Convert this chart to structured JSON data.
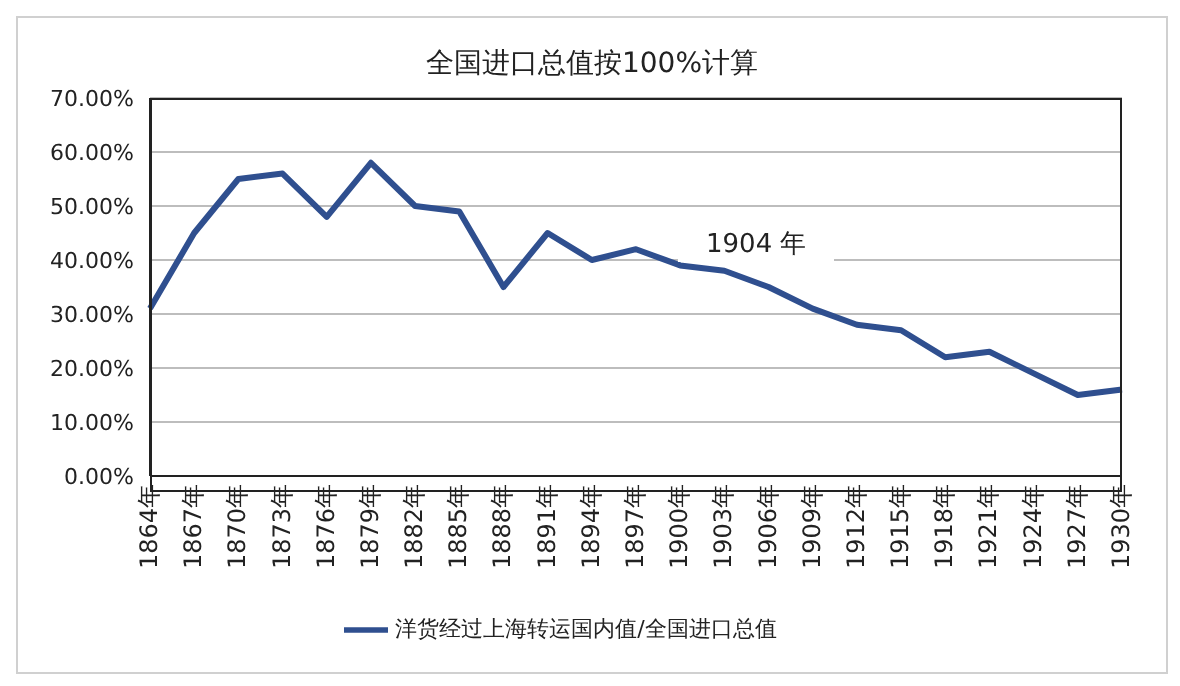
{
  "chart_data": {
    "type": "line",
    "title": "全国进口总值按100%计算",
    "categories": [
      "1864年",
      "1867年",
      "1870年",
      "1873年",
      "1876年",
      "1879年",
      "1882年",
      "1885年",
      "1888年",
      "1891年",
      "1894年",
      "1897年",
      "1900年",
      "1903年",
      "1906年",
      "1909年",
      "1912年",
      "1915年",
      "1918年",
      "1921年",
      "1924年",
      "1927年",
      "1930年"
    ],
    "series": [
      {
        "name": "洋货经过上海转运国内值/全国进口总值",
        "color": "#2f4f8f",
        "values": [
          31,
          45,
          55,
          56,
          48,
          58,
          50,
          49,
          35,
          45,
          40,
          42,
          39,
          38,
          35,
          31,
          28,
          27,
          22,
          23,
          19,
          15,
          16
        ]
      }
    ],
    "ylim": [
      0,
      70
    ],
    "yticks": [
      {
        "value": 0,
        "label": "0.00%"
      },
      {
        "value": 10,
        "label": "10.00%"
      },
      {
        "value": 20,
        "label": "20.00%"
      },
      {
        "value": 30,
        "label": "30.00%"
      },
      {
        "value": 40,
        "label": "40.00%"
      },
      {
        "value": 50,
        "label": "50.00%"
      },
      {
        "value": 60,
        "label": "60.00%"
      },
      {
        "value": 70,
        "label": "70.00%"
      }
    ],
    "grid": "y",
    "legend": "bottom",
    "marker": "none",
    "line_style": "solid",
    "annotations": [
      "1904 年"
    ]
  }
}
